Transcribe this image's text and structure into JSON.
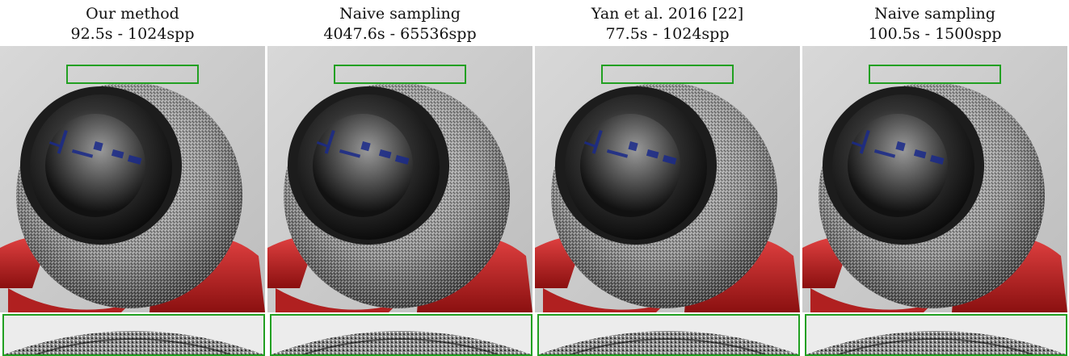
{
  "figure": {
    "panels": [
      {
        "title": "Our method",
        "stats": "92.5s - 1024spp",
        "highlight_color": "#22a022"
      },
      {
        "title": "Naive sampling",
        "stats": "4047.6s - 65536spp",
        "highlight_color": "#22a022"
      },
      {
        "title": "Yan et al. 2016 [22]",
        "stats": "77.5s - 1024spp",
        "highlight_color": "#22a022"
      },
      {
        "title": "Naive sampling",
        "stats": "100.5s - 1500spp",
        "highlight_color": "#22a022"
      }
    ]
  }
}
